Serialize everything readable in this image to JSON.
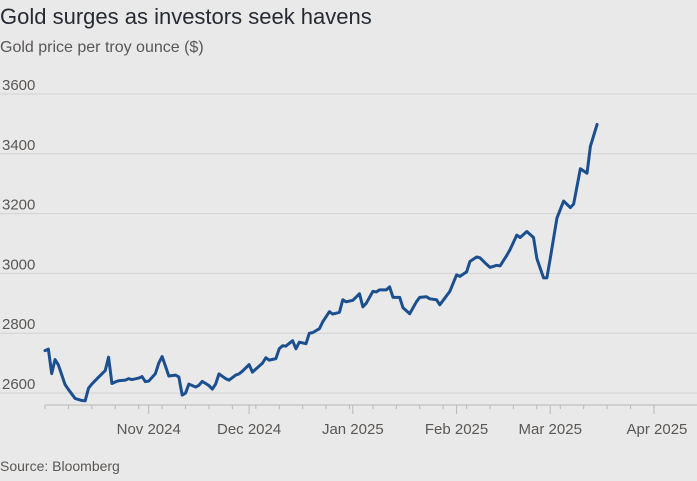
{
  "chart_data": {
    "type": "line",
    "title": "Gold surges as investors seek havens",
    "subtitle": "Gold price per troy ounce ($)",
    "source": "Source: Bloomberg",
    "xlabel": "",
    "ylabel": "",
    "ylim": [
      2560,
      3660
    ],
    "yticks": [
      2600,
      2800,
      3000,
      3200,
      3400,
      3600
    ],
    "xlim": [
      "2024-10-01",
      "2025-04-04"
    ],
    "xticks": [
      {
        "label": "Nov 2024",
        "date": "2024-11-01"
      },
      {
        "label": "Dec 2024",
        "date": "2024-12-01"
      },
      {
        "label": "Jan 2025",
        "date": "2025-01-01"
      },
      {
        "label": "Feb 2025",
        "date": "2025-02-01"
      },
      {
        "label": "Mar 2025",
        "date": "2025-03-01"
      },
      {
        "label": "Apr 2025",
        "date": "2025-04-01"
      }
    ],
    "grid": true,
    "series": [
      {
        "color": "#1b4f8f",
        "points": [
          [
            "2024-10-01",
            2742
          ],
          [
            "2024-10-02",
            2747
          ],
          [
            "2024-10-03",
            2665
          ],
          [
            "2024-10-04",
            2712
          ],
          [
            "2024-10-05",
            2694
          ],
          [
            "2024-10-07",
            2628
          ],
          [
            "2024-10-08",
            2612
          ],
          [
            "2024-10-10",
            2582
          ],
          [
            "2024-10-12",
            2575
          ],
          [
            "2024-10-13",
            2574
          ],
          [
            "2024-10-14",
            2616
          ],
          [
            "2024-10-15",
            2630
          ],
          [
            "2024-10-17",
            2653
          ],
          [
            "2024-10-19",
            2675
          ],
          [
            "2024-10-20",
            2720
          ],
          [
            "2024-10-21",
            2632
          ],
          [
            "2024-10-22",
            2637
          ],
          [
            "2024-10-23",
            2641
          ],
          [
            "2024-10-25",
            2643
          ],
          [
            "2024-10-26",
            2648
          ],
          [
            "2024-10-27",
            2645
          ],
          [
            "2024-10-29",
            2650
          ],
          [
            "2024-10-30",
            2655
          ],
          [
            "2024-10-31",
            2638
          ],
          [
            "2024-11-01",
            2640
          ],
          [
            "2024-11-03",
            2665
          ],
          [
            "2024-11-04",
            2700
          ],
          [
            "2024-11-05",
            2722
          ],
          [
            "2024-11-06",
            2690
          ],
          [
            "2024-11-07",
            2657
          ],
          [
            "2024-11-09",
            2660
          ],
          [
            "2024-11-10",
            2654
          ],
          [
            "2024-11-11",
            2593
          ],
          [
            "2024-11-12",
            2600
          ],
          [
            "2024-11-13",
            2630
          ],
          [
            "2024-11-15",
            2620
          ],
          [
            "2024-11-16",
            2626
          ],
          [
            "2024-11-17",
            2639
          ],
          [
            "2024-11-19",
            2625
          ],
          [
            "2024-11-20",
            2613
          ],
          [
            "2024-11-21",
            2630
          ],
          [
            "2024-11-22",
            2664
          ],
          [
            "2024-11-24",
            2648
          ],
          [
            "2024-11-25",
            2643
          ],
          [
            "2024-11-27",
            2660
          ],
          [
            "2024-11-28",
            2664
          ],
          [
            "2024-11-29",
            2673
          ],
          [
            "2024-12-01",
            2695
          ],
          [
            "2024-12-02",
            2670
          ],
          [
            "2024-12-03",
            2680
          ],
          [
            "2024-12-05",
            2700
          ],
          [
            "2024-12-06",
            2718
          ],
          [
            "2024-12-07",
            2710
          ],
          [
            "2024-12-09",
            2715
          ],
          [
            "2024-12-10",
            2748
          ],
          [
            "2024-12-11",
            2758
          ],
          [
            "2024-12-12",
            2757
          ],
          [
            "2024-12-14",
            2775
          ],
          [
            "2024-12-15",
            2748
          ],
          [
            "2024-12-16",
            2770
          ],
          [
            "2024-12-18",
            2765
          ],
          [
            "2024-12-19",
            2800
          ],
          [
            "2024-12-20",
            2802
          ],
          [
            "2024-12-22",
            2815
          ],
          [
            "2024-12-23",
            2838
          ],
          [
            "2024-12-25",
            2872
          ],
          [
            "2024-12-26",
            2864
          ],
          [
            "2024-12-28",
            2870
          ],
          [
            "2024-12-29",
            2912
          ],
          [
            "2024-12-30",
            2905
          ],
          [
            "2025-01-01",
            2910
          ],
          [
            "2025-01-03",
            2932
          ],
          [
            "2025-01-04",
            2888
          ],
          [
            "2025-01-05",
            2900
          ],
          [
            "2025-01-07",
            2940
          ],
          [
            "2025-01-08",
            2938
          ],
          [
            "2025-01-09",
            2945
          ],
          [
            "2025-01-11",
            2945
          ],
          [
            "2025-01-12",
            2955
          ],
          [
            "2025-01-13",
            2920
          ],
          [
            "2025-01-15",
            2920
          ],
          [
            "2025-01-16",
            2885
          ],
          [
            "2025-01-18",
            2865
          ],
          [
            "2025-01-20",
            2905
          ],
          [
            "2025-01-21",
            2920
          ],
          [
            "2025-01-23",
            2922
          ],
          [
            "2025-01-24",
            2915
          ],
          [
            "2025-01-26",
            2912
          ],
          [
            "2025-01-27",
            2895
          ],
          [
            "2025-01-29",
            2925
          ],
          [
            "2025-01-30",
            2940
          ],
          [
            "2025-02-01",
            2995
          ],
          [
            "2025-02-02",
            2990
          ],
          [
            "2025-02-04",
            3005
          ],
          [
            "2025-02-05",
            3040
          ],
          [
            "2025-02-07",
            3055
          ],
          [
            "2025-02-08",
            3052
          ],
          [
            "2025-02-10",
            3030
          ],
          [
            "2025-02-11",
            3020
          ],
          [
            "2025-02-13",
            3027
          ],
          [
            "2025-02-14",
            3025
          ],
          [
            "2025-02-16",
            3060
          ],
          [
            "2025-02-17",
            3080
          ],
          [
            "2025-02-19",
            3128
          ],
          [
            "2025-02-20",
            3120
          ],
          [
            "2025-02-22",
            3140
          ],
          [
            "2025-02-24",
            3120
          ],
          [
            "2025-02-25",
            3050
          ],
          [
            "2025-02-27",
            2985
          ],
          [
            "2025-02-28",
            2985
          ],
          [
            "2025-03-01",
            3050
          ],
          [
            "2025-03-03",
            3185
          ],
          [
            "2025-03-05",
            3242
          ],
          [
            "2025-03-07",
            3220
          ],
          [
            "2025-03-08",
            3232
          ],
          [
            "2025-03-10",
            3350
          ],
          [
            "2025-03-12",
            3335
          ],
          [
            "2025-03-13",
            3425
          ],
          [
            "2025-03-15",
            3498
          ]
        ]
      }
    ]
  }
}
